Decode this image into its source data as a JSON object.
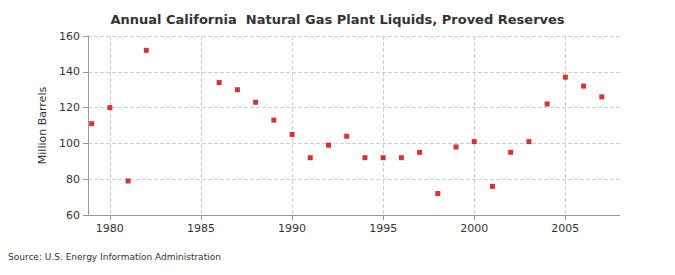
{
  "chart_data": {
    "type": "scatter",
    "title": "Annual California  Natural Gas Plant Liquids, Proved Reserves",
    "y_label": "Million Barrels",
    "annotations": [
      "Source: U.S. Energy Information Administration"
    ],
    "x": [
      1979,
      1980,
      1981,
      1982,
      1986,
      1987,
      1988,
      1989,
      1990,
      1991,
      1992,
      1993,
      1994,
      1995,
      1996,
      1997,
      1998,
      1999,
      2000,
      2001,
      2002,
      2003,
      2004,
      2005,
      2006,
      2007
    ],
    "values": [
      111,
      120,
      79,
      152,
      134,
      130,
      123,
      113,
      105,
      92,
      99,
      104,
      92,
      92,
      92,
      95,
      72,
      98,
      101,
      76,
      95,
      101,
      122,
      137,
      132,
      126
    ],
    "color": "#cc0000",
    "marker": "square",
    "xlim": [
      1978.8,
      2008
    ],
    "xticks": [
      1980,
      1985,
      1990,
      1995,
      2000,
      2005
    ],
    "ylim": [
      60,
      160
    ],
    "yticks": [
      60,
      80,
      100,
      120,
      140,
      160
    ],
    "grid": true
  }
}
